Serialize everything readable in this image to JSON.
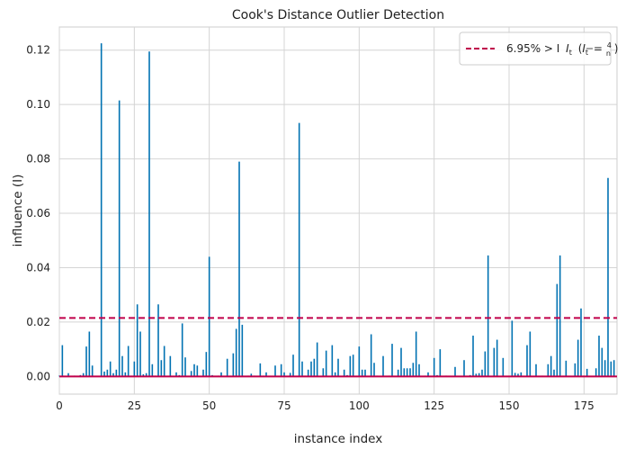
{
  "chart_data": {
    "type": "bar",
    "title": "Cook's Distance Outlier Detection",
    "xlabel": "instance index",
    "ylabel": "influence (I)",
    "xlim": [
      0,
      186
    ],
    "ylim": [
      -0.0065,
      0.1285
    ],
    "xticks": [
      0,
      25,
      50,
      75,
      100,
      125,
      150,
      175
    ],
    "yticks": [
      0.0,
      0.02,
      0.04,
      0.06,
      0.08,
      0.1,
      0.12
    ],
    "ytick_labels": [
      "0.00",
      "0.02",
      "0.04",
      "0.06",
      "0.08",
      "0.10",
      "0.12"
    ],
    "threshold": 0.0215,
    "threshold_label": "6.95% > I",
    "legend_position": "top-right",
    "grid": true,
    "bar_color": "#0072b2",
    "threshold_color": "#c0004a",
    "values": [
      0.0003,
      0.0115,
      0.0002,
      0.0012,
      0.0001,
      0.0003,
      0.0002,
      0.0005,
      0.0012,
      0.011,
      0.0165,
      0.004,
      0.0002,
      0.0001,
      0.1225,
      0.0018,
      0.0025,
      0.0055,
      0.0012,
      0.0025,
      0.1015,
      0.0075,
      0.0015,
      0.0112,
      0.0003,
      0.0055,
      0.0265,
      0.0165,
      0.0008,
      0.0012,
      0.1195,
      0.0045,
      0.0003,
      0.0265,
      0.006,
      0.0112,
      0.0002,
      0.0075,
      0.0002,
      0.0015,
      0.0005,
      0.0195,
      0.007,
      0.0002,
      0.002,
      0.0045,
      0.004,
      0.0002,
      0.0025,
      0.009,
      0.044,
      0.0005,
      0.0002,
      0.0003,
      0.0015,
      0.0002,
      0.0065,
      0.0003,
      0.0085,
      0.0175,
      0.079,
      0.019,
      0.0002,
      0.0003,
      0.001,
      0.0003,
      0.0002,
      0.0048,
      0.0003,
      0.0015,
      0.0002,
      0.0002,
      0.004,
      0.0002,
      0.0045,
      0.0015,
      0.0002,
      0.0013,
      0.008,
      0.0002,
      0.0932,
      0.0055,
      0.0003,
      0.0025,
      0.0055,
      0.0065,
      0.0125,
      0.0002,
      0.003,
      0.0095,
      0.0002,
      0.0115,
      0.0015,
      0.0065,
      0.0002,
      0.0025,
      0.0005,
      0.0075,
      0.008,
      0.0002,
      0.011,
      0.0025,
      0.0025,
      0.0002,
      0.0155,
      0.005,
      0.0003,
      0.0002,
      0.0075,
      0.0002,
      0.0003,
      0.012,
      0.0002,
      0.0025,
      0.0105,
      0.003,
      0.003,
      0.003,
      0.005,
      0.0165,
      0.0045,
      0.0002,
      0.0003,
      0.0015,
      0.0002,
      0.0068,
      0.0005,
      0.01,
      0.0002,
      0.0003,
      0.0002,
      0.0002,
      0.0035,
      0.0002,
      0.0002,
      0.006,
      0.0002,
      0.0005,
      0.015,
      0.001,
      0.0012,
      0.0025,
      0.0092,
      0.0445,
      0.0002,
      0.0105,
      0.0135,
      0.0002,
      0.0068,
      0.0002,
      0.0002,
      0.0205,
      0.0013,
      0.001,
      0.0015,
      0.0002,
      0.0115,
      0.0165,
      0.0002,
      0.0045,
      0.0002,
      0.0003,
      0.0002,
      0.0045,
      0.0075,
      0.0025,
      0.034,
      0.0445,
      0.0003,
      0.0058,
      0.0002,
      0.0002,
      0.0048,
      0.0135,
      0.025,
      0.0003,
      0.0028,
      0.0002,
      0.0002,
      0.003,
      0.015,
      0.0105,
      0.006,
      0.073,
      0.0055,
      0.006
    ]
  }
}
